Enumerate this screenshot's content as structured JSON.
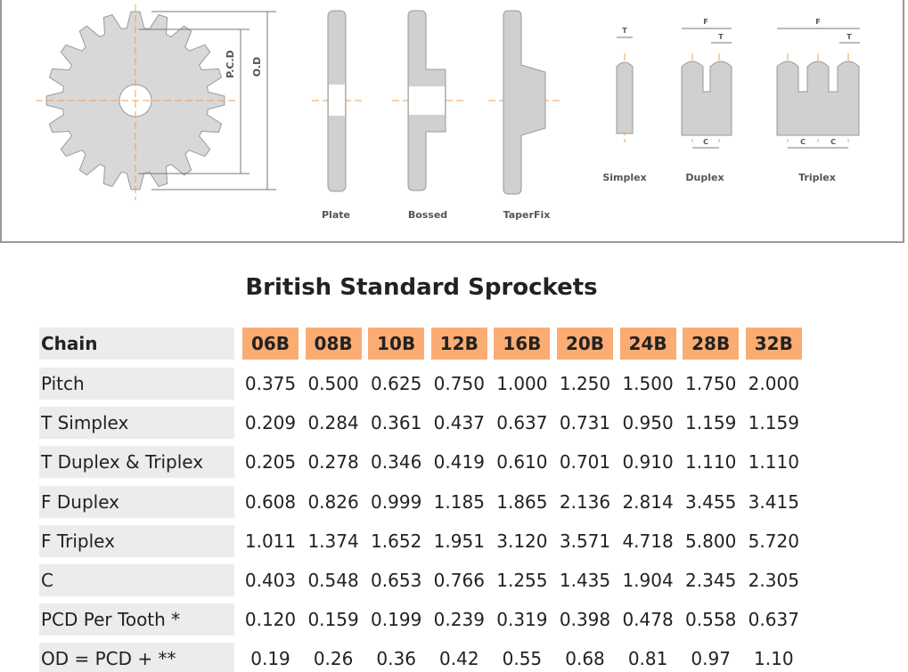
{
  "diagram": {
    "pcd_label": "P.C.D",
    "od_label": "O.D",
    "hub_types": [
      "Plate",
      "Bossed",
      "TaperFix"
    ],
    "chain_types": [
      "Simplex",
      "Duplex",
      "Triplex"
    ],
    "dim_t": "T",
    "dim_f": "F",
    "dim_c": "C"
  },
  "title": "British Standard Sprockets",
  "table": {
    "header": [
      "Chain",
      "06B",
      "08B",
      "10B",
      "12B",
      "16B",
      "20B",
      "24B",
      "28B",
      "32B"
    ],
    "rows": [
      [
        "Pitch",
        "0.375",
        "0.500",
        "0.625",
        "0.750",
        "1.000",
        "1.250",
        "1.500",
        "1.750",
        "2.000"
      ],
      [
        "T Simplex",
        "0.209",
        "0.284",
        "0.361",
        "0.437",
        "0.637",
        "0.731",
        "0.950",
        "1.159",
        "1.159"
      ],
      [
        "T Duplex & Triplex",
        "0.205",
        "0.278",
        "0.346",
        "0.419",
        "0.610",
        "0.701",
        "0.910",
        "1.110",
        "1.110"
      ],
      [
        "F Duplex",
        "0.608",
        "0.826",
        "0.999",
        "1.185",
        "1.865",
        "2.136",
        "2.814",
        "3.455",
        "3.415"
      ],
      [
        "F Triplex",
        "1.011",
        "1.374",
        "1.652",
        "1.951",
        "3.120",
        "3.571",
        "4.718",
        "5.800",
        "5.720"
      ],
      [
        "C",
        "0.403",
        "0.548",
        "0.653",
        "0.766",
        "1.255",
        "1.435",
        "1.904",
        "2.345",
        "2.305"
      ],
      [
        "PCD Per Tooth *",
        "0.120",
        "0.159",
        "0.199",
        "0.239",
        "0.319",
        "0.398",
        "0.478",
        "0.558",
        "0.637"
      ],
      [
        "OD = PCD + **",
        "0.19",
        "0.26",
        "0.36",
        "0.42",
        "0.55",
        "0.68",
        "0.81",
        "0.97",
        "1.10"
      ]
    ]
  }
}
